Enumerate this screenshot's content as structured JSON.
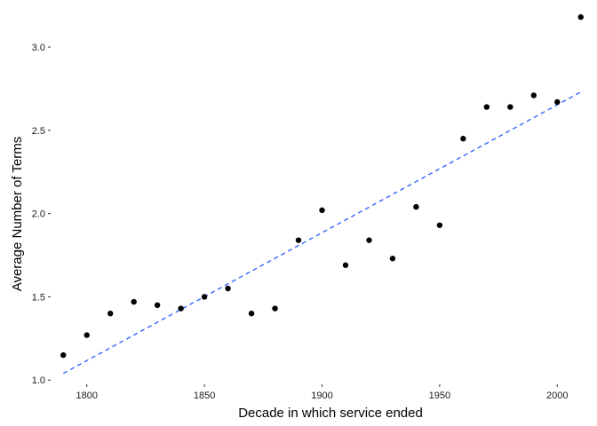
{
  "chart_data": {
    "type": "scatter",
    "xlabel": "Decade in which service ended",
    "ylabel": "Average Number of Terms",
    "xlim": [
      1785,
      2015
    ],
    "ylim": [
      0.98,
      3.24
    ],
    "x_ticks": [
      1800,
      1850,
      1900,
      1950,
      2000
    ],
    "y_ticks": [
      1.0,
      1.5,
      2.0,
      2.5,
      3.0
    ],
    "x_tick_labels": [
      "1800",
      "1850",
      "1900",
      "1950",
      "2000"
    ],
    "y_tick_labels": [
      "1.0",
      "1.5",
      "2.0",
      "2.5",
      "3.0"
    ],
    "grid": false,
    "point_color": "#000000",
    "trend_color": "#3366FF",
    "trend_style": "dashed",
    "points": [
      {
        "x": 1790,
        "y": 1.15
      },
      {
        "x": 1800,
        "y": 1.27
      },
      {
        "x": 1810,
        "y": 1.4
      },
      {
        "x": 1820,
        "y": 1.47
      },
      {
        "x": 1830,
        "y": 1.45
      },
      {
        "x": 1840,
        "y": 1.43
      },
      {
        "x": 1850,
        "y": 1.5
      },
      {
        "x": 1860,
        "y": 1.55
      },
      {
        "x": 1870,
        "y": 1.4
      },
      {
        "x": 1880,
        "y": 1.43
      },
      {
        "x": 1890,
        "y": 1.84
      },
      {
        "x": 1900,
        "y": 2.02
      },
      {
        "x": 1910,
        "y": 1.69
      },
      {
        "x": 1920,
        "y": 1.84
      },
      {
        "x": 1930,
        "y": 1.73
      },
      {
        "x": 1940,
        "y": 2.04
      },
      {
        "x": 1950,
        "y": 1.93
      },
      {
        "x": 1960,
        "y": 2.45
      },
      {
        "x": 1970,
        "y": 2.64
      },
      {
        "x": 1980,
        "y": 2.64
      },
      {
        "x": 1990,
        "y": 2.71
      },
      {
        "x": 2000,
        "y": 2.67
      },
      {
        "x": 2010,
        "y": 3.18
      }
    ],
    "trend_line": {
      "x": [
        1790,
        2010
      ],
      "y": [
        1.04,
        2.73
      ]
    }
  }
}
